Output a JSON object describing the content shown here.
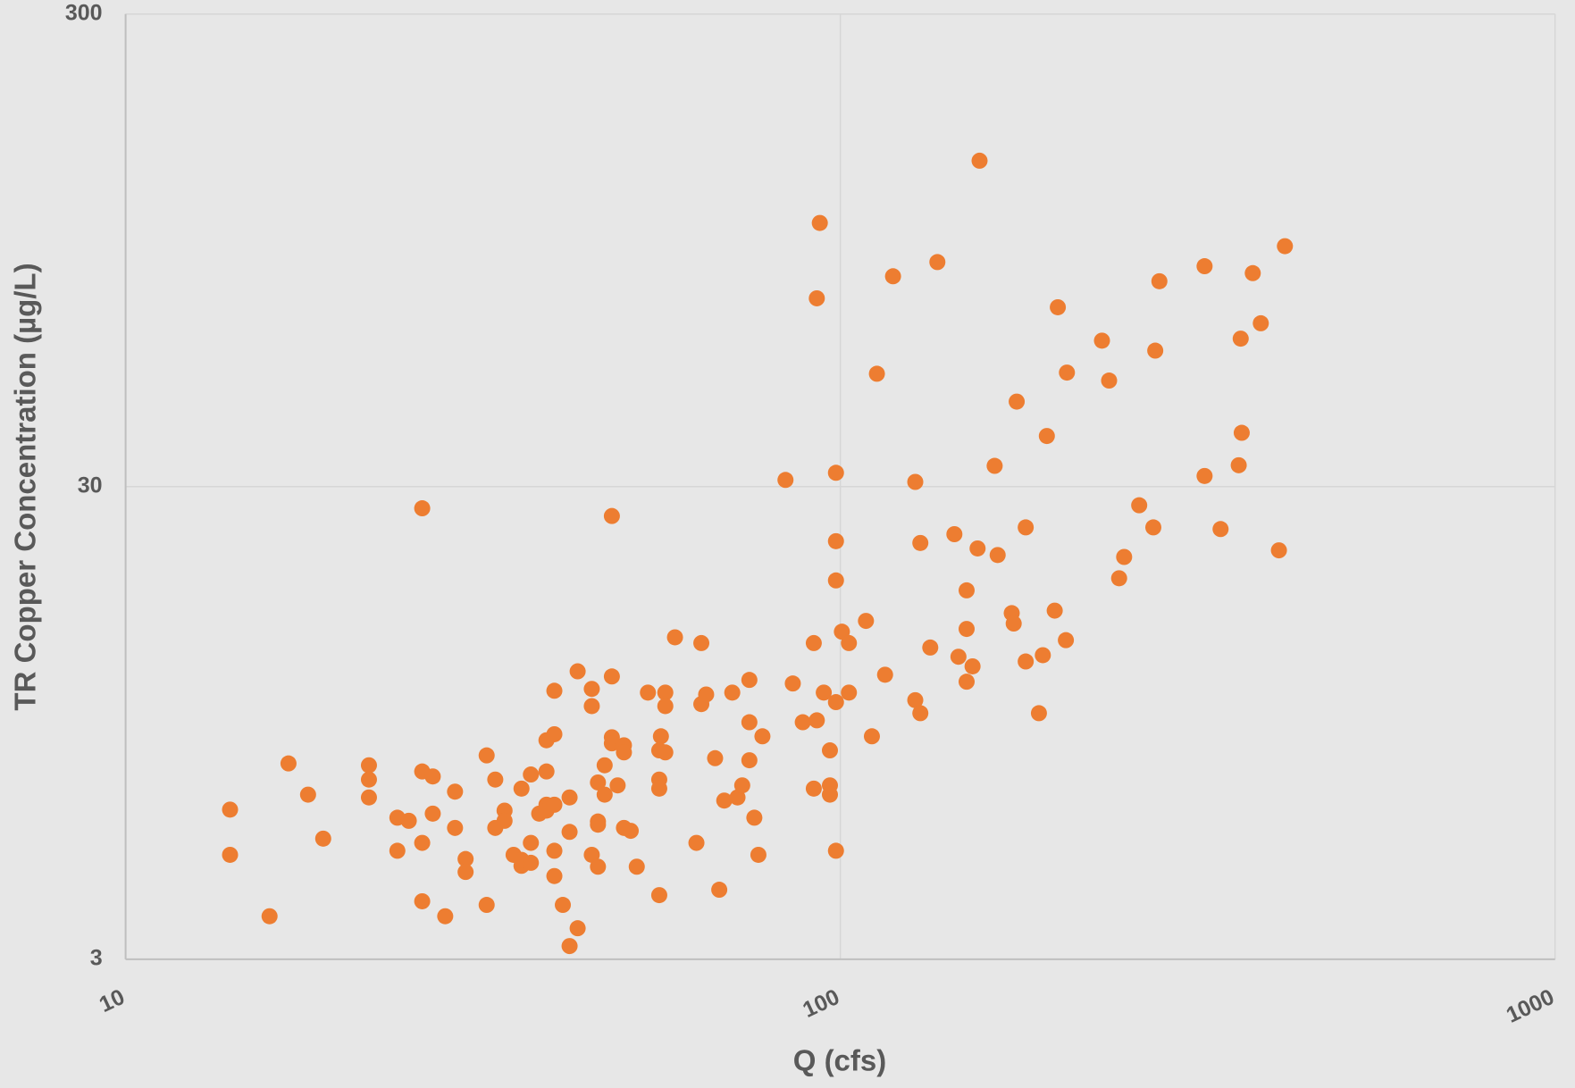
{
  "chart_data": {
    "type": "scatter",
    "x_label": "Q (cfs)",
    "y_label": "TR Copper Concentration (µg/L)",
    "xscale": "log",
    "yscale": "log",
    "xlim": [
      10,
      1000
    ],
    "ylim": [
      3,
      300
    ],
    "xticks": [
      10,
      100,
      1000
    ],
    "yticks": [
      3,
      30,
      300
    ],
    "grid": true,
    "color": "#ed7d31",
    "x": [
      14.0,
      14.0,
      15.9,
      16.9,
      18.0,
      18.9,
      21.9,
      21.9,
      21.9,
      24.0,
      24.0,
      24.9,
      26.0,
      26.0,
      26.0,
      26.0,
      26.9,
      26.9,
      28.0,
      28.9,
      28.9,
      29.9,
      29.9,
      32.0,
      32.0,
      32.9,
      32.9,
      33.9,
      33.9,
      34.9,
      35.8,
      35.8,
      35.8,
      36.9,
      36.9,
      36.9,
      37.9,
      38.8,
      38.8,
      38.8,
      38.8,
      39.8,
      39.8,
      39.8,
      39.8,
      39.8,
      40.9,
      41.8,
      41.8,
      41.8,
      42.9,
      42.9,
      44.9,
      44.9,
      44.9,
      45.8,
      45.8,
      45.8,
      45.8,
      46.8,
      46.8,
      47.9,
      47.9,
      47.9,
      47.9,
      48.8,
      49.8,
      49.8,
      49.8,
      50.9,
      51.9,
      53.8,
      55.8,
      55.8,
      55.8,
      55.8,
      56.1,
      56.9,
      56.9,
      56.9,
      58.7,
      62.9,
      63.9,
      63.9,
      64.9,
      66.8,
      67.7,
      68.8,
      70.6,
      71.8,
      72.9,
      74.6,
      74.6,
      74.6,
      75.8,
      76.8,
      77.8,
      83.8,
      85.8,
      88.6,
      91.8,
      91.8,
      92.7,
      92.7,
      93.6,
      94.8,
      96.7,
      96.7,
      96.7,
      98.6,
      98.6,
      98.6,
      98.6,
      98.6,
      100.5,
      102.8,
      102.8,
      108.6,
      110.7,
      112.5,
      115.5,
      118.5,
      127.3,
      127.3,
      129.4,
      129.4,
      133.6,
      136.7,
      144.4,
      146.3,
      150.2,
      150.2,
      150.2,
      153.1,
      155.6,
      156.6,
      164.4,
      166.0,
      173.7,
      174.8,
      176.5,
      181.7,
      181.7,
      189.6,
      192.0,
      194.5,
      199.5,
      201.5,
      206.8,
      207.5,
      232.3,
      237.7,
      245.5,
      249.5,
      261.9,
      274.1,
      275.8,
      279.5,
      323.3,
      323.3,
      340.4,
      360.9,
      363.2,
      364.4,
      377.6,
      387.5,
      410.8,
      418.8
    ],
    "values": [
      6.22,
      4.99,
      3.7,
      7.79,
      6.69,
      5.4,
      7.72,
      7.2,
      6.6,
      5.98,
      5.09,
      5.89,
      27.0,
      7.49,
      5.29,
      3.98,
      7.31,
      6.1,
      3.7,
      6.79,
      5.69,
      4.89,
      4.59,
      8.1,
      3.91,
      7.2,
      5.69,
      6.19,
      5.89,
      4.99,
      6.89,
      4.73,
      4.87,
      7.38,
      5.29,
      4.8,
      6.1,
      8.72,
      7.49,
      6.37,
      6.19,
      11.1,
      8.98,
      6.37,
      5.09,
      4.5,
      3.91,
      6.6,
      5.58,
      3.2,
      12.2,
      3.49,
      11.2,
      10.3,
      4.99,
      7.1,
      5.87,
      5.78,
      4.71,
      7.72,
      6.69,
      26.0,
      11.9,
      8.85,
      8.59,
      7.0,
      8.51,
      8.22,
      5.69,
      5.61,
      4.71,
      11.0,
      8.3,
      7.2,
      6.89,
      4.1,
      8.89,
      11.0,
      10.3,
      8.22,
      14.4,
      5.29,
      14.0,
      10.4,
      10.9,
      7.99,
      4.21,
      6.5,
      11.0,
      6.6,
      7.0,
      11.7,
      9.52,
      7.91,
      5.98,
      4.99,
      8.89,
      31.0,
      11.5,
      9.52,
      14.0,
      6.89,
      75.1,
      9.61,
      108.4,
      11.0,
      8.3,
      7.0,
      6.69,
      32.1,
      23.0,
      19.0,
      10.5,
      5.09,
      14.8,
      14.0,
      11.0,
      15.6,
      8.89,
      52.0,
      12.0,
      83.6,
      30.7,
      10.6,
      22.8,
      9.95,
      13.7,
      89.6,
      23.8,
      13.1,
      18.1,
      15.0,
      11.6,
      12.5,
      22.2,
      146.8,
      33.2,
      21.5,
      16.2,
      15.4,
      45.4,
      24.6,
      12.8,
      9.95,
      13.2,
      38.4,
      16.4,
      71.9,
      14.2,
      52.3,
      61.1,
      50.3,
      19.2,
      21.3,
      27.4,
      24.6,
      58.2,
      81.6,
      87.8,
      31.6,
      24.4,
      33.3,
      61.7,
      39.0,
      84.9,
      66.5,
      22.0,
      96.8
    ]
  }
}
